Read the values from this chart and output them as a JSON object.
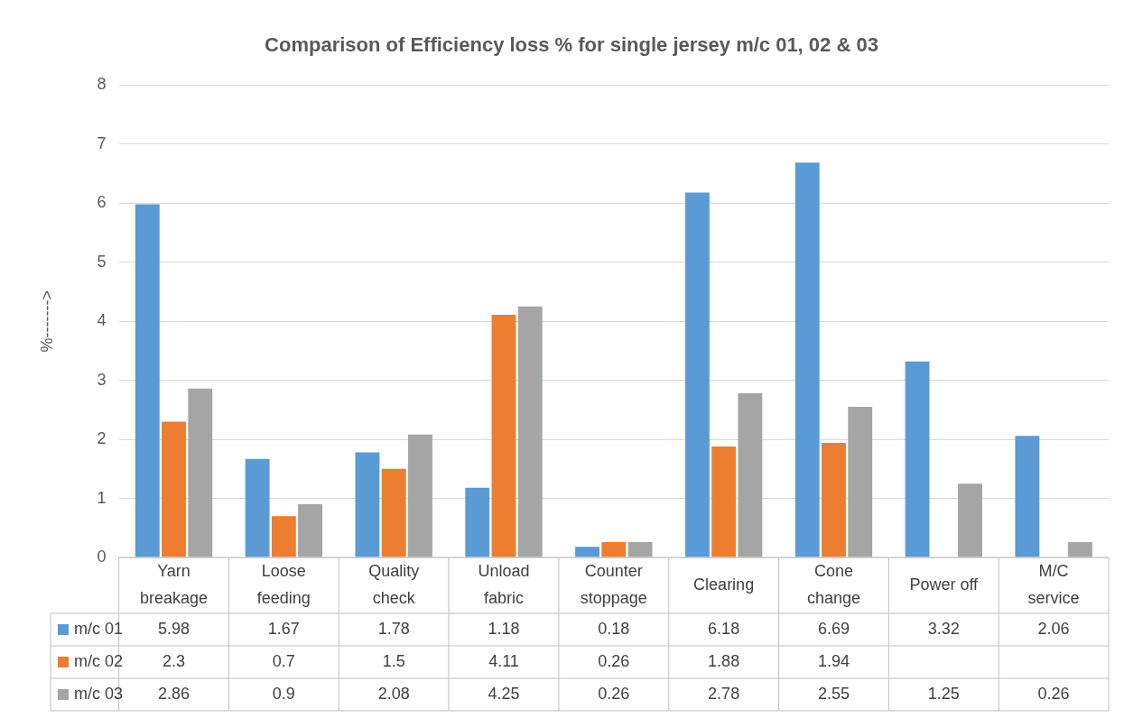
{
  "chart_data": {
    "type": "bar",
    "title": "Comparison of Efficiency loss % for single jersey m/c 01, 02 & 03",
    "ylabel": "%------->",
    "categories": [
      "Yarn breakage",
      "Loose feeding",
      "Quality check",
      "Unload fabric",
      "Counter stoppage",
      "Clearing",
      "Cone change",
      "Power off",
      "M/C service"
    ],
    "series": [
      {
        "name": "m/c 01",
        "color": "#5b9bd5",
        "values": [
          5.98,
          1.67,
          1.78,
          1.18,
          0.18,
          6.18,
          6.69,
          3.32,
          2.06
        ]
      },
      {
        "name": "m/c 02",
        "color": "#ed7d31",
        "values": [
          2.3,
          0.7,
          1.5,
          4.11,
          0.26,
          1.88,
          1.94,
          null,
          null
        ]
      },
      {
        "name": "m/c 03",
        "color": "#a5a5a5",
        "values": [
          2.86,
          0.9,
          2.08,
          4.25,
          0.26,
          2.78,
          2.55,
          1.25,
          0.26
        ]
      }
    ],
    "ylim": [
      0,
      8
    ],
    "yticks": [
      0,
      1,
      2,
      3,
      4,
      5,
      6,
      7,
      8
    ],
    "grid": "y",
    "legend": "bottom",
    "data_labels": true
  }
}
